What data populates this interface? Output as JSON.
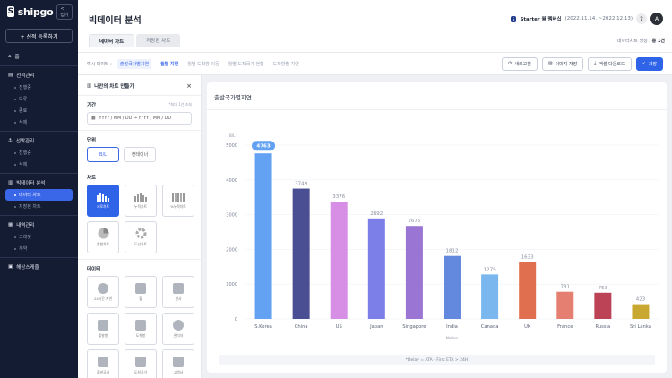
{
  "sidebar": {
    "logo": "shipgo",
    "collapse_label": "접기",
    "register_button": "+ 선적 등록하기",
    "home": "홈",
    "sections": [
      {
        "title": "선적관리",
        "items": [
          "진행중",
          "보류",
          "종료",
          "삭제"
        ]
      },
      {
        "title": "선박관리",
        "items": [
          "진행중",
          "삭제"
        ]
      },
      {
        "title": "빅데이터 분석",
        "items": [
          "데이터 차트",
          "저장된 차트"
        ]
      },
      {
        "title": "내역관리",
        "items": [
          "크레딧",
          "계약"
        ]
      }
    ],
    "bottom_item": "해상스케줄"
  },
  "header": {
    "title": "빅데이터 분석",
    "plan_badge": "S",
    "plan_name": "Starter 월 멤버십",
    "plan_period": "(2022.11.14. ~2022.12.13)",
    "help": "?",
    "avatar": "A",
    "tabs": [
      "데이터 차트",
      "저장된 차트"
    ],
    "created_label": "데이터차트 생성 :",
    "created_count": "총 1건"
  },
  "toolbar": {
    "label": "예시 데이터 :",
    "chips": [
      "출발국가별지연",
      "월별 지연",
      "월별 도착항 이동",
      "월별 도착국가 현황",
      "도착항별 지연"
    ],
    "refresh": "새로고침",
    "save_image": "이미지 저장",
    "excel_download": "엑셀 다운로드",
    "save": "저장"
  },
  "builder": {
    "title": "나만의 차트 만들기",
    "close": "×",
    "period_label": "기간",
    "period_note": "*최대 1년 조회",
    "date_placeholder": "YYYY / MM / DD  →  YYYY / MM / DD",
    "unit_label": "단위",
    "units": [
      "B/L",
      "컨테이너"
    ],
    "chart_label": "차트",
    "chart_types": [
      "세로차트",
      "누적차트",
      "%누적차트",
      "원형차트",
      "도넛차트"
    ],
    "data_label": "데이터",
    "data_types": [
      "24시간 지연",
      "월",
      "선사",
      "출발항",
      "도착항",
      "관리자",
      "출발국가",
      "도착국가",
      "고객사"
    ]
  },
  "chart_data": {
    "type": "bar",
    "title": "출발국가별지연",
    "ylabel": "B/L",
    "xlabel": "Nation",
    "ylim": [
      0,
      5000
    ],
    "yticks": [
      0,
      1000,
      2000,
      3000,
      4000,
      5000
    ],
    "categories": [
      "S.Korea",
      "China",
      "US",
      "Japan",
      "Singapore",
      "India",
      "Canada",
      "UK",
      "France",
      "Russia",
      "Sri Lanka"
    ],
    "values": [
      4763,
      3749,
      3376,
      2892,
      2675,
      1812,
      1279,
      1633,
      781,
      753,
      423
    ],
    "colors": [
      "#63a2f2",
      "#4a4f93",
      "#d78fe6",
      "#7c7fe8",
      "#9b75d3",
      "#6289dd",
      "#79b7ee",
      "#e06f4f",
      "#e47f71",
      "#bc4356",
      "#c8a830"
    ],
    "highlight_index": 0,
    "footnote": "*Delay = ATA - First ETA > 24H"
  }
}
